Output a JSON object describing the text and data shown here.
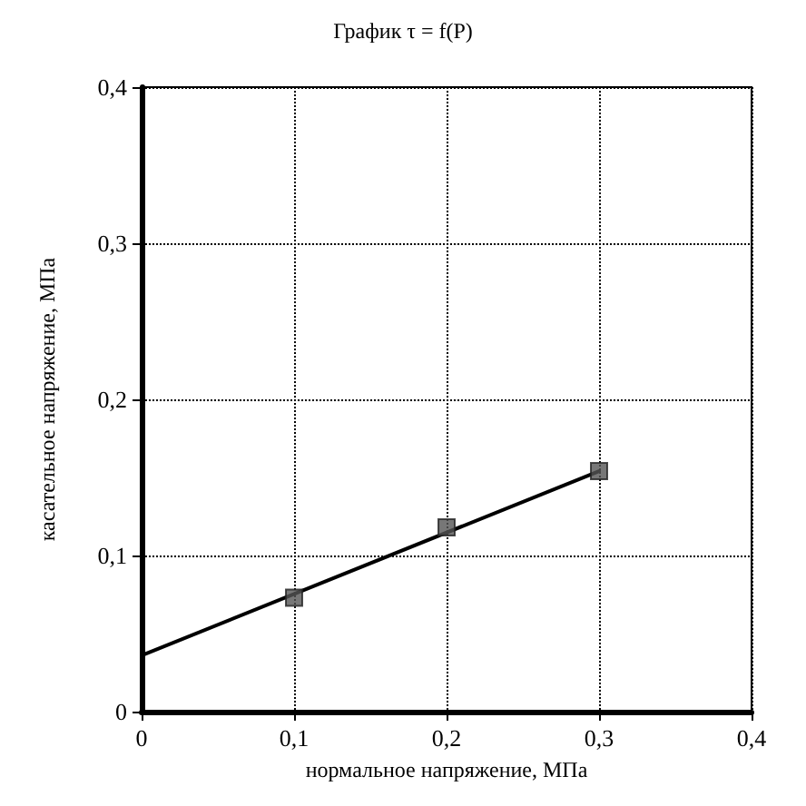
{
  "chart_data": {
    "type": "line",
    "title": "График τ = f(P)",
    "xlabel": "нормальное напряжение, МПа",
    "ylabel": "касательное напряжение, МПа",
    "series": [
      {
        "x": [
          0,
          0.3
        ],
        "values": [
          0.036,
          0.154
        ],
        "color": "#000000",
        "marker": "none",
        "line_style": "solid"
      },
      {
        "type": "scatter",
        "x": [
          0.1,
          0.2,
          0.3
        ],
        "values": [
          0.073,
          0.118,
          0.154
        ],
        "color": "#555555",
        "marker": "square"
      }
    ],
    "xlim": [
      0,
      0.4
    ],
    "ylim": [
      0,
      0.4
    ],
    "xticks": [
      0,
      {
        "value": 0.1,
        "label": "0,1"
      },
      {
        "value": 0.2,
        "label": "0,2"
      },
      {
        "value": 0.3,
        "label": "0,3"
      },
      {
        "value": 0.4,
        "label": "0,4"
      }
    ],
    "yticks": [
      0,
      {
        "value": 0.1,
        "label": "0,1"
      },
      {
        "value": 0.2,
        "label": "0,2"
      },
      {
        "value": 0.3,
        "label": "0,3"
      },
      {
        "value": 0.4,
        "label": "0,4"
      }
    ],
    "grid": true
  }
}
